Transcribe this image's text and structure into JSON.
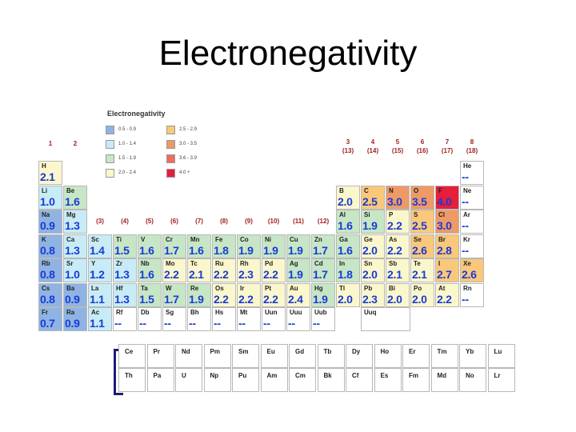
{
  "title": "Electronegativity",
  "legend": {
    "title": "Electronegativity",
    "items": [
      {
        "label": "0.5 - 0.9",
        "color": "#8fb4e3"
      },
      {
        "label": "1.0 - 1.4",
        "color": "#c8ecf6"
      },
      {
        "label": "1.5 - 1.9",
        "color": "#c6e6c6"
      },
      {
        "label": "2.0 - 2.4",
        "color": "#fbf7cc"
      },
      {
        "label": "2.5 - 2.9",
        "color": "#f9c87a"
      },
      {
        "label": "3.0 - 3.5",
        "color": "#ee9a66"
      },
      {
        "label": "3.6 - 3.9",
        "color": "#ec6e5c"
      },
      {
        "label": "4.0 +",
        "color": "#e61e3a"
      }
    ]
  },
  "group_labels": [
    "1",
    "2",
    "(3)",
    "(4)",
    "(5)",
    "(6)",
    "(7)",
    "(8)",
    "(9)",
    "(10)",
    "(11)",
    "(12)",
    "3\n(13)",
    "4\n(14)",
    "5\n(15)",
    "6\n(16)",
    "7\n(17)",
    "8\n(18)"
  ],
  "elements": [
    {
      "symbol": "H",
      "value": "2.1",
      "row": 1,
      "col": 1
    },
    {
      "symbol": "He",
      "value": "--",
      "row": 1,
      "col": 18
    },
    {
      "symbol": "Li",
      "value": "1.0",
      "row": 2,
      "col": 1
    },
    {
      "symbol": "Be",
      "value": "1.6",
      "row": 2,
      "col": 2
    },
    {
      "symbol": "B",
      "value": "2.0",
      "row": 2,
      "col": 13
    },
    {
      "symbol": "C",
      "value": "2.5",
      "row": 2,
      "col": 14
    },
    {
      "symbol": "N",
      "value": "3.0",
      "row": 2,
      "col": 15
    },
    {
      "symbol": "O",
      "value": "3.5",
      "row": 2,
      "col": 16
    },
    {
      "symbol": "F",
      "value": "4.0",
      "row": 2,
      "col": 17
    },
    {
      "symbol": "Ne",
      "value": "--",
      "row": 2,
      "col": 18
    },
    {
      "symbol": "Na",
      "value": "0.9",
      "row": 3,
      "col": 1
    },
    {
      "symbol": "Mg",
      "value": "1.3",
      "row": 3,
      "col": 2
    },
    {
      "symbol": "Al",
      "value": "1.6",
      "row": 3,
      "col": 13
    },
    {
      "symbol": "Si",
      "value": "1.9",
      "row": 3,
      "col": 14
    },
    {
      "symbol": "P",
      "value": "2.2",
      "row": 3,
      "col": 15
    },
    {
      "symbol": "S",
      "value": "2.5",
      "row": 3,
      "col": 16
    },
    {
      "symbol": "Cl",
      "value": "3.0",
      "row": 3,
      "col": 17
    },
    {
      "symbol": "Ar",
      "value": "--",
      "row": 3,
      "col": 18
    },
    {
      "symbol": "K",
      "value": "0.8",
      "row": 4,
      "col": 1
    },
    {
      "symbol": "Ca",
      "value": "1.3",
      "row": 4,
      "col": 2
    },
    {
      "symbol": "Sc",
      "value": "1.4",
      "row": 4,
      "col": 3
    },
    {
      "symbol": "Ti",
      "value": "1.5",
      "row": 4,
      "col": 4
    },
    {
      "symbol": "V",
      "value": "1.6",
      "row": 4,
      "col": 5
    },
    {
      "symbol": "Cr",
      "value": "1.7",
      "row": 4,
      "col": 6
    },
    {
      "symbol": "Mn",
      "value": "1.6",
      "row": 4,
      "col": 7
    },
    {
      "symbol": "Fe",
      "value": "1.8",
      "row": 4,
      "col": 8
    },
    {
      "symbol": "Co",
      "value": "1.9",
      "row": 4,
      "col": 9
    },
    {
      "symbol": "Ni",
      "value": "1.9",
      "row": 4,
      "col": 10
    },
    {
      "symbol": "Cu",
      "value": "1.9",
      "row": 4,
      "col": 11
    },
    {
      "symbol": "Zn",
      "value": "1.7",
      "row": 4,
      "col": 12
    },
    {
      "symbol": "Ga",
      "value": "1.6",
      "row": 4,
      "col": 13
    },
    {
      "symbol": "Ge",
      "value": "2.0",
      "row": 4,
      "col": 14
    },
    {
      "symbol": "As",
      "value": "2.2",
      "row": 4,
      "col": 15
    },
    {
      "symbol": "Se",
      "value": "2.6",
      "row": 4,
      "col": 16
    },
    {
      "symbol": "Br",
      "value": "2.8",
      "row": 4,
      "col": 17
    },
    {
      "symbol": "Kr",
      "value": "--",
      "row": 4,
      "col": 18
    },
    {
      "symbol": "Rb",
      "value": "0.8",
      "row": 5,
      "col": 1
    },
    {
      "symbol": "Sr",
      "value": "1.0",
      "row": 5,
      "col": 2
    },
    {
      "symbol": "Y",
      "value": "1.2",
      "row": 5,
      "col": 3
    },
    {
      "symbol": "Zr",
      "value": "1.3",
      "row": 5,
      "col": 4
    },
    {
      "symbol": "Nb",
      "value": "1.6",
      "row": 5,
      "col": 5
    },
    {
      "symbol": "Mo",
      "value": "2.2",
      "row": 5,
      "col": 6
    },
    {
      "symbol": "Tc",
      "value": "2.1",
      "row": 5,
      "col": 7
    },
    {
      "symbol": "Ru",
      "value": "2.2",
      "row": 5,
      "col": 8
    },
    {
      "symbol": "Rh",
      "value": "2.3",
      "row": 5,
      "col": 9
    },
    {
      "symbol": "Pd",
      "value": "2.2",
      "row": 5,
      "col": 10
    },
    {
      "symbol": "Ag",
      "value": "1.9",
      "row": 5,
      "col": 11
    },
    {
      "symbol": "Cd",
      "value": "1.7",
      "row": 5,
      "col": 12
    },
    {
      "symbol": "In",
      "value": "1.8",
      "row": 5,
      "col": 13
    },
    {
      "symbol": "Sn",
      "value": "2.0",
      "row": 5,
      "col": 14
    },
    {
      "symbol": "Sb",
      "value": "2.1",
      "row": 5,
      "col": 15
    },
    {
      "symbol": "Te",
      "value": "2.1",
      "row": 5,
      "col": 16
    },
    {
      "symbol": "I",
      "value": "2.7",
      "row": 5,
      "col": 17
    },
    {
      "symbol": "Xe",
      "value": "2.6",
      "row": 5,
      "col": 18
    },
    {
      "symbol": "Cs",
      "value": "0.8",
      "row": 6,
      "col": 1
    },
    {
      "symbol": "Ba",
      "value": "0.9",
      "row": 6,
      "col": 2
    },
    {
      "symbol": "La",
      "value": "1.1",
      "row": 6,
      "col": 3
    },
    {
      "symbol": "Hf",
      "value": "1.3",
      "row": 6,
      "col": 4
    },
    {
      "symbol": "Ta",
      "value": "1.5",
      "row": 6,
      "col": 5
    },
    {
      "symbol": "W",
      "value": "1.7",
      "row": 6,
      "col": 6
    },
    {
      "symbol": "Re",
      "value": "1.9",
      "row": 6,
      "col": 7
    },
    {
      "symbol": "Os",
      "value": "2.2",
      "row": 6,
      "col": 8
    },
    {
      "symbol": "Ir",
      "value": "2.2",
      "row": 6,
      "col": 9
    },
    {
      "symbol": "Pt",
      "value": "2.2",
      "row": 6,
      "col": 10
    },
    {
      "symbol": "Au",
      "value": "2.4",
      "row": 6,
      "col": 11
    },
    {
      "symbol": "Hg",
      "value": "1.9",
      "row": 6,
      "col": 12
    },
    {
      "symbol": "Tl",
      "value": "2.0",
      "row": 6,
      "col": 13
    },
    {
      "symbol": "Pb",
      "value": "2.3",
      "row": 6,
      "col": 14
    },
    {
      "symbol": "Bi",
      "value": "2.0",
      "row": 6,
      "col": 15
    },
    {
      "symbol": "Po",
      "value": "2.0",
      "row": 6,
      "col": 16
    },
    {
      "symbol": "At",
      "value": "2.2",
      "row": 6,
      "col": 17
    },
    {
      "symbol": "Rn",
      "value": "--",
      "row": 6,
      "col": 18
    },
    {
      "symbol": "Fr",
      "value": "0.7",
      "row": 7,
      "col": 1
    },
    {
      "symbol": "Ra",
      "value": "0.9",
      "row": 7,
      "col": 2
    },
    {
      "symbol": "Ac",
      "value": "1.1",
      "row": 7,
      "col": 3
    },
    {
      "symbol": "Rf",
      "value": "--",
      "row": 7,
      "col": 4
    },
    {
      "symbol": "Db",
      "value": "--",
      "row": 7,
      "col": 5
    },
    {
      "symbol": "Sg",
      "value": "--",
      "row": 7,
      "col": 6
    },
    {
      "symbol": "Bh",
      "value": "--",
      "row": 7,
      "col": 7
    },
    {
      "symbol": "Hs",
      "value": "--",
      "row": 7,
      "col": 8
    },
    {
      "symbol": "Mt",
      "value": "--",
      "row": 7,
      "col": 9
    },
    {
      "symbol": "Uun",
      "value": "--",
      "row": 7,
      "col": 10
    },
    {
      "symbol": "Uuu",
      "value": "--",
      "row": 7,
      "col": 11
    },
    {
      "symbol": "Uub",
      "value": "--",
      "row": 7,
      "col": 12
    },
    {
      "symbol": "Uuq",
      "value": "",
      "row": 7,
      "col": 14
    }
  ],
  "lanthanides": [
    "Ce",
    "Pr",
    "Nd",
    "Pm",
    "Sm",
    "Eu",
    "Gd",
    "Tb",
    "Dy",
    "Ho",
    "Er",
    "Tm",
    "Yb",
    "Lu"
  ],
  "actinides": [
    "Th",
    "Pa",
    "U",
    "Np",
    "Pu",
    "Am",
    "Cm",
    "Bk",
    "Cf",
    "Es",
    "Fm",
    "Md",
    "No",
    "Lr"
  ]
}
